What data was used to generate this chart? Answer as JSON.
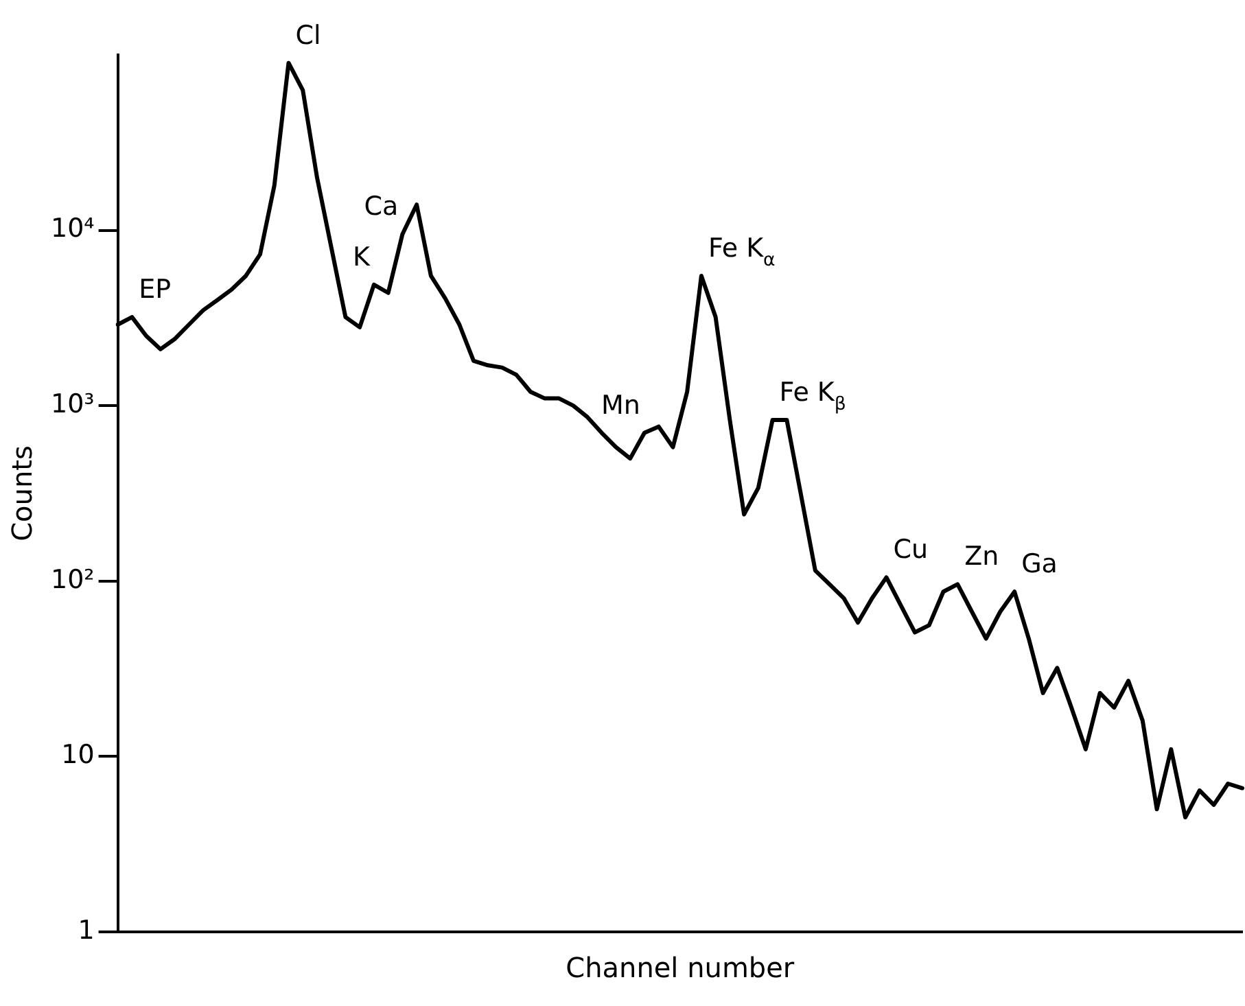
{
  "chart_data": {
    "type": "line",
    "xlabel": "Channel number",
    "ylabel": "Counts",
    "log": "y",
    "grid": false,
    "legend": false,
    "marker": "none",
    "line_style": "solid",
    "tick_labels": "y",
    "ylim": [
      1,
      100000
    ],
    "yticks": [
      1,
      10,
      {
        "value": 100,
        "label": "10²"
      },
      {
        "value": 1000,
        "label": "10³"
      },
      {
        "value": 10000,
        "label": "10⁴"
      }
    ],
    "categories": [
      null,
      null,
      null,
      null,
      null,
      null,
      null,
      null,
      null,
      null,
      null,
      null,
      null,
      null,
      null,
      null,
      null,
      null,
      null,
      null,
      null,
      null,
      null,
      null,
      null,
      null,
      null,
      null,
      null,
      null,
      null,
      null,
      null,
      null,
      null,
      null,
      null,
      null,
      null,
      null,
      null,
      null,
      null,
      null,
      null,
      null,
      null,
      null,
      null,
      null,
      null,
      null,
      null,
      null,
      null,
      null,
      null,
      null,
      null,
      null,
      null,
      null,
      null,
      null,
      null,
      null,
      null,
      null,
      null,
      null,
      null,
      null,
      null,
      null,
      null,
      null,
      null,
      null,
      null,
      null
    ],
    "series": [
      {
        "color": "#000000",
        "values": [
          2900,
          3200,
          2500,
          2100,
          2400,
          2900,
          3500,
          4000,
          4600,
          5500,
          7300,
          18000,
          90000,
          63000,
          20000,
          8000,
          3200,
          2800,
          4900,
          4400,
          9500,
          14000,
          5500,
          4100,
          2900,
          1800,
          1700,
          1650,
          1500,
          1200,
          1100,
          1100,
          1000,
          860,
          700,
          580,
          500,
          700,
          760,
          580,
          1200,
          5500,
          3200,
          830,
          240,
          340,
          830,
          830,
          310,
          115,
          96,
          80,
          58,
          80,
          105,
          73,
          51,
          56,
          87,
          96,
          67,
          47,
          67,
          87,
          47,
          23,
          32,
          19,
          11,
          23,
          19,
          27,
          16,
          5,
          11,
          4.5,
          6.4,
          5.3,
          7,
          6.6
        ],
        "value_labels": [
          null,
          "EP",
          null,
          null,
          null,
          null,
          null,
          null,
          null,
          null,
          null,
          null,
          "Cl",
          null,
          null,
          null,
          null,
          null,
          "K",
          null,
          "Ca",
          null,
          null,
          null,
          null,
          null,
          null,
          null,
          null,
          null,
          null,
          null,
          null,
          null,
          null,
          null,
          null,
          "Mn",
          null,
          null,
          null,
          "Fe K$_{α}$",
          null,
          null,
          null,
          null,
          "Fe K$_{β}$",
          null,
          null,
          null,
          null,
          null,
          null,
          null,
          "Cu",
          null,
          null,
          null,
          null,
          "Zn",
          null,
          null,
          null,
          "Ga",
          null,
          null,
          null,
          null,
          null,
          null,
          null,
          null,
          null,
          null,
          null,
          null,
          null,
          null,
          null,
          null
        ]
      }
    ]
  }
}
